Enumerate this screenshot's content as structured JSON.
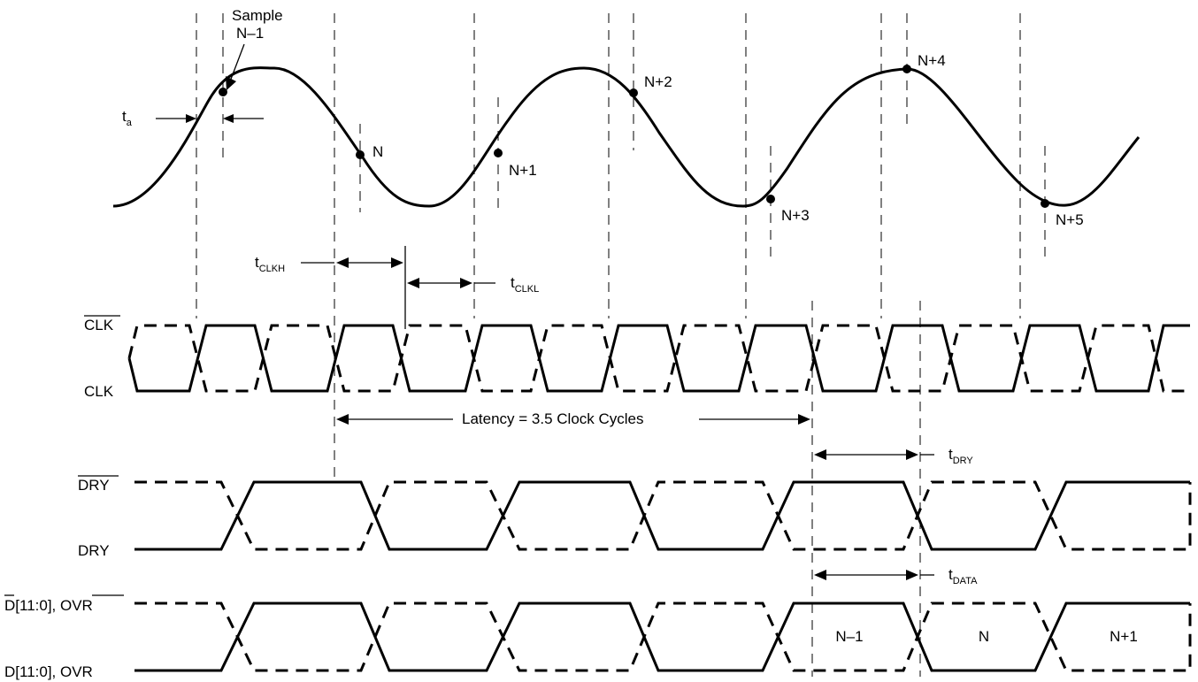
{
  "analog_input": {
    "sample_caption_line1": "Sample",
    "sample_caption_line2": "N–1",
    "samples": [
      "N",
      "N+1",
      "N+2",
      "N+3",
      "N+4",
      "N+5"
    ],
    "aperture": {
      "main": "t",
      "sub": "a"
    }
  },
  "clock_timing": {
    "t_clkh": {
      "main": "t",
      "sub": "CLKH"
    },
    "t_clkl": {
      "main": "t",
      "sub": "CLKL"
    },
    "latency": "Latency = 3.5 Clock Cycles"
  },
  "signals": {
    "clk_bar": "CLK",
    "clk": "CLK",
    "dry_bar": "DRY",
    "dry": "DRY",
    "data_bar_d": "D",
    "data_bar_rest": "[11:0], ",
    "data_bar_ovr": "OVR",
    "data": "D[11:0], OVR"
  },
  "output_timing": {
    "t_dry": {
      "main": "t",
      "sub": "DRY"
    },
    "t_data": {
      "main": "t",
      "sub": "DATA"
    }
  },
  "data_words": [
    "N–1",
    "N",
    "N+1"
  ]
}
